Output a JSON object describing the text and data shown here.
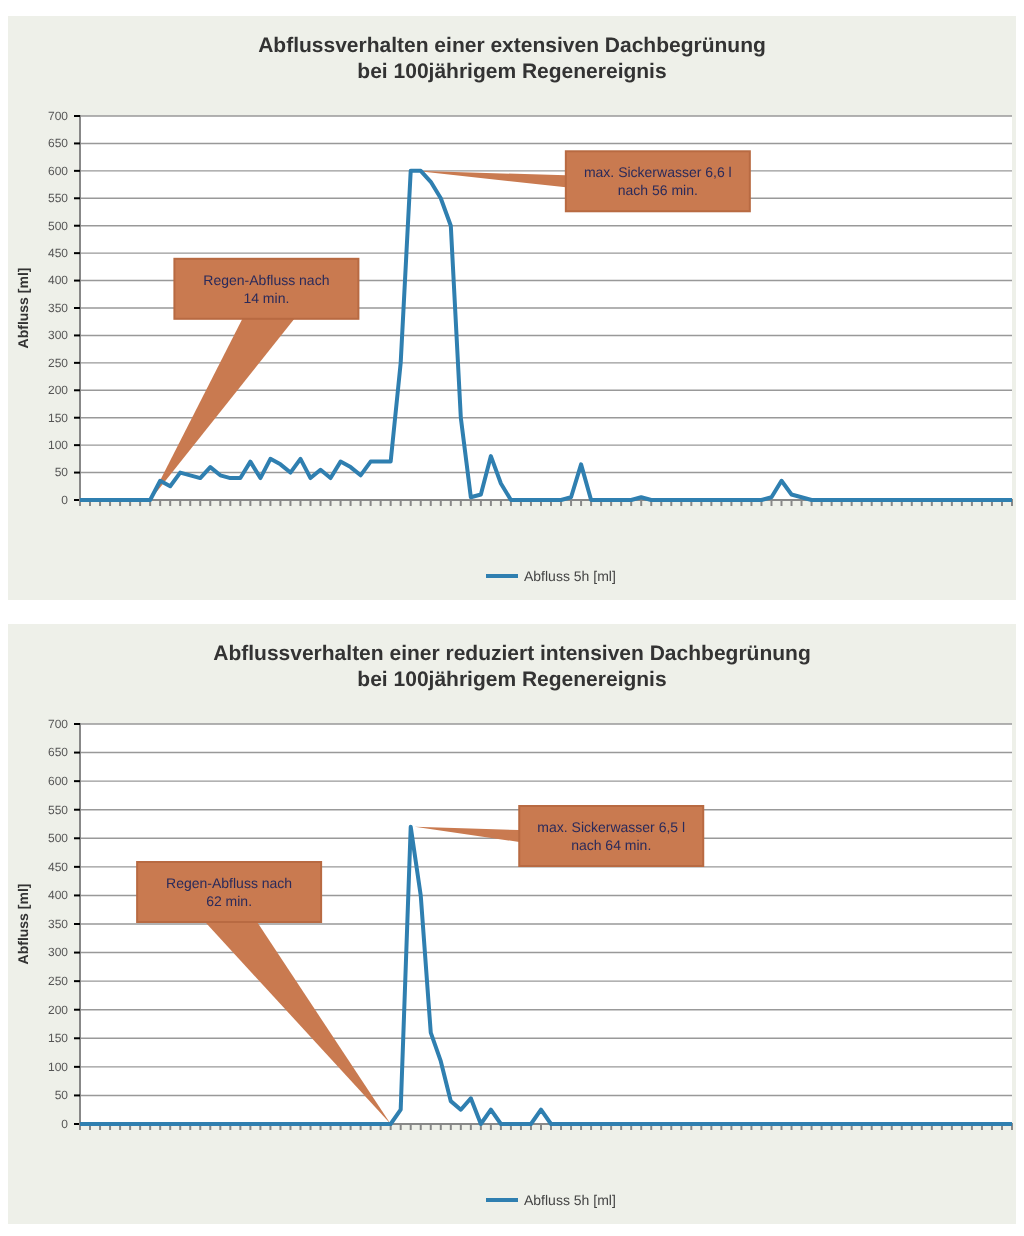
{
  "chart_data": [
    {
      "type": "line",
      "title": "Abflussverhalten einer extensiven Dachbegrünung\nbei 100jährigem Regenereignis",
      "ylabel": "Abfluss [ml]",
      "categories": [
        null,
        null,
        null,
        null,
        null,
        null,
        null,
        null,
        null,
        null,
        null,
        null,
        null,
        null,
        null,
        null,
        null,
        null,
        null,
        null,
        null,
        null,
        null,
        null,
        null,
        null,
        null,
        null,
        null,
        null,
        null,
        null,
        null,
        null,
        null,
        null,
        null,
        null,
        null,
        null,
        null,
        null,
        null,
        null,
        null,
        null,
        null,
        null,
        null,
        null,
        null,
        null,
        null,
        null,
        null,
        null,
        null,
        null,
        null,
        null,
        null,
        null,
        null,
        null,
        null,
        null,
        null,
        null,
        null,
        null,
        null,
        null,
        null,
        null,
        null,
        null,
        null,
        null,
        null,
        null,
        null,
        null,
        null,
        null,
        null,
        null,
        null,
        null,
        null,
        null,
        null,
        null,
        null,
        null
      ],
      "series": [
        {
          "name": "Abfluss 5h [ml]",
          "color": "#2f7fb0",
          "values": [
            0,
            0,
            0,
            0,
            0,
            0,
            0,
            0,
            35,
            25,
            50,
            45,
            40,
            60,
            45,
            40,
            40,
            70,
            40,
            75,
            65,
            50,
            75,
            40,
            55,
            40,
            70,
            60,
            45,
            70,
            70,
            70,
            250,
            600,
            600,
            580,
            550,
            500,
            150,
            5,
            10,
            80,
            30,
            0,
            0,
            0,
            0,
            0,
            0,
            5,
            65,
            0,
            0,
            0,
            0,
            0,
            5,
            0,
            0,
            0,
            0,
            0,
            0,
            0,
            0,
            0,
            0,
            0,
            0,
            5,
            35,
            10,
            5,
            0,
            0,
            0,
            0,
            0,
            0,
            0,
            0,
            0,
            0,
            0,
            0,
            0,
            0,
            0,
            0,
            0,
            0,
            0,
            0,
            0
          ]
        }
      ],
      "ylim": [
        0,
        700
      ],
      "yticks": [
        0,
        50,
        100,
        150,
        200,
        250,
        300,
        350,
        400,
        450,
        500,
        550,
        600,
        650,
        700
      ],
      "grid": "y",
      "legend": "bottom",
      "marker": "none",
      "line_style": "solid",
      "annotations": [
        "Regen-Abfluss nach 14 min.",
        "max. Sickerwasser 6,6 l nach 56 min."
      ]
    },
    {
      "type": "line",
      "title": "Abflussverhalten einer reduziert intensiven Dachbegrünung\nbei 100jährigem Regenereignis",
      "ylabel": "Abfluss [ml]",
      "categories": [
        null,
        null,
        null,
        null,
        null,
        null,
        null,
        null,
        null,
        null,
        null,
        null,
        null,
        null,
        null,
        null,
        null,
        null,
        null,
        null,
        null,
        null,
        null,
        null,
        null,
        null,
        null,
        null,
        null,
        null,
        null,
        null,
        null,
        null,
        null,
        null,
        null,
        null,
        null,
        null,
        null,
        null,
        null,
        null,
        null,
        null,
        null,
        null,
        null,
        null,
        null,
        null,
        null,
        null,
        null,
        null,
        null,
        null,
        null,
        null,
        null,
        null,
        null,
        null,
        null,
        null,
        null,
        null,
        null,
        null,
        null,
        null,
        null,
        null,
        null,
        null,
        null,
        null,
        null,
        null,
        null,
        null,
        null,
        null,
        null,
        null,
        null,
        null,
        null,
        null,
        null,
        null,
        null,
        null
      ],
      "series": [
        {
          "name": "Abfluss 5h [ml]",
          "color": "#2f7fb0",
          "values": [
            0,
            0,
            0,
            0,
            0,
            0,
            0,
            0,
            0,
            0,
            0,
            0,
            0,
            0,
            0,
            0,
            0,
            0,
            0,
            0,
            0,
            0,
            0,
            0,
            0,
            0,
            0,
            0,
            0,
            0,
            0,
            0,
            25,
            520,
            400,
            160,
            110,
            40,
            25,
            45,
            0,
            25,
            0,
            0,
            0,
            0,
            25,
            0,
            0,
            0,
            0,
            0,
            0,
            0,
            0,
            0,
            0,
            0,
            0,
            0,
            0,
            0,
            0,
            0,
            0,
            0,
            0,
            0,
            0,
            0,
            0,
            0,
            0,
            0,
            0,
            0,
            0,
            0,
            0,
            0,
            0,
            0,
            0,
            0,
            0,
            0,
            0,
            0,
            0,
            0,
            0,
            0,
            0,
            0
          ]
        }
      ],
      "ylim": [
        0,
        700
      ],
      "yticks": [
        0,
        50,
        100,
        150,
        200,
        250,
        300,
        350,
        400,
        450,
        500,
        550,
        600,
        650,
        700
      ],
      "grid": "y",
      "legend": "bottom",
      "marker": "none",
      "line_style": "solid",
      "annotations": [
        "Regen-Abfluss nach 62 min.",
        "max. Sickerwasser 6,5 l nach 64 min."
      ]
    }
  ]
}
